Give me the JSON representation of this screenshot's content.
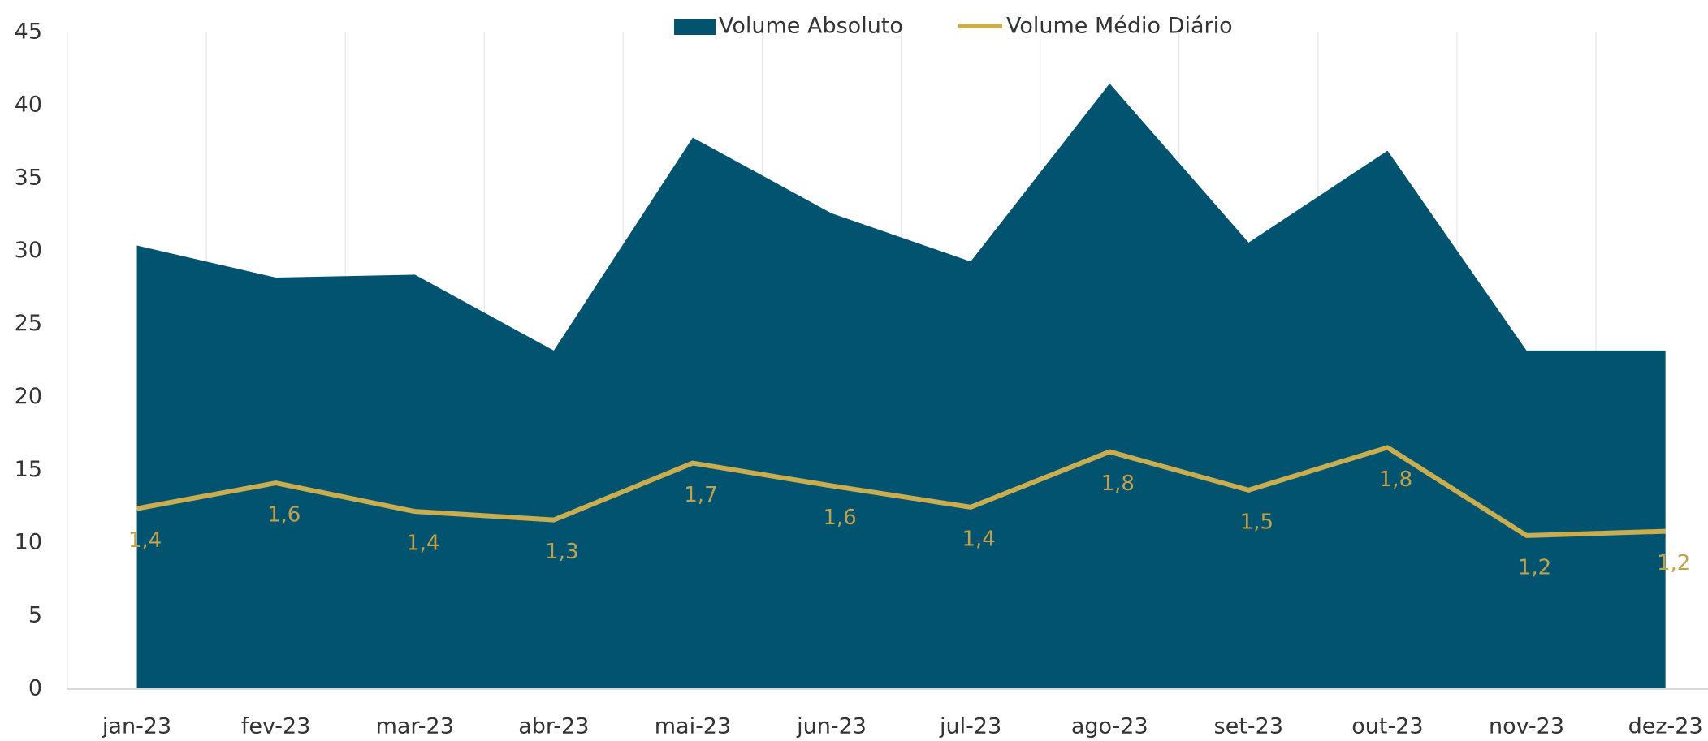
{
  "chart_data": {
    "type": "area_line",
    "categories": [
      "jan-23",
      "fev-23",
      "mar-23",
      "abr-23",
      "mai-23",
      "jun-23",
      "jul-23",
      "ago-23",
      "set-23",
      "out-23",
      "nov-23",
      "dez-23"
    ],
    "series": [
      {
        "name": "Volume Absoluto",
        "type": "area",
        "color": "#02536f",
        "values": [
          30.4,
          28.2,
          28.4,
          23.2,
          37.8,
          32.6,
          29.3,
          41.5,
          30.6,
          36.9,
          23.2,
          23.2
        ]
      },
      {
        "name": "Volume Médio Diário",
        "type": "line",
        "axis": "y2",
        "color": "#c9ad4e",
        "values": [
          1.4,
          1.58,
          1.38,
          1.32,
          1.72,
          1.56,
          1.41,
          1.8,
          1.53,
          1.83,
          1.21,
          1.24
        ],
        "value_labels": [
          "1,4",
          "1,6",
          "1,4",
          "1,3",
          "1,7",
          "1,6",
          "1,4",
          "1,8",
          "1,5",
          "1,8",
          "1,2",
          "1,2"
        ]
      }
    ],
    "ylim": [
      0,
      45
    ],
    "yticks": [
      0,
      5,
      10,
      15,
      20,
      25,
      30,
      35,
      40,
      45
    ],
    "y2lim": [
      0.13,
      4.75
    ],
    "legend": "top",
    "grid": "vertical"
  }
}
